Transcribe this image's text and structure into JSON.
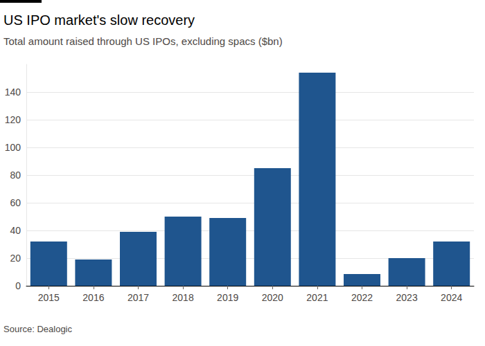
{
  "chart_data": {
    "type": "bar",
    "title": "US IPO market's slow recovery",
    "subtitle": "Total amount raised through US IPOs, excluding spacs ($bn)",
    "source": "Source: Dealogic",
    "categories": [
      "2015",
      "2016",
      "2017",
      "2018",
      "2019",
      "2020",
      "2021",
      "2022",
      "2023",
      "2024"
    ],
    "values": [
      32,
      19,
      39,
      50,
      49,
      85,
      154,
      8.5,
      20,
      32
    ],
    "color": "#1f558e",
    "ylim": [
      0,
      160
    ],
    "yticks": [
      0,
      20,
      40,
      60,
      80,
      100,
      120,
      140
    ],
    "grid": true
  }
}
